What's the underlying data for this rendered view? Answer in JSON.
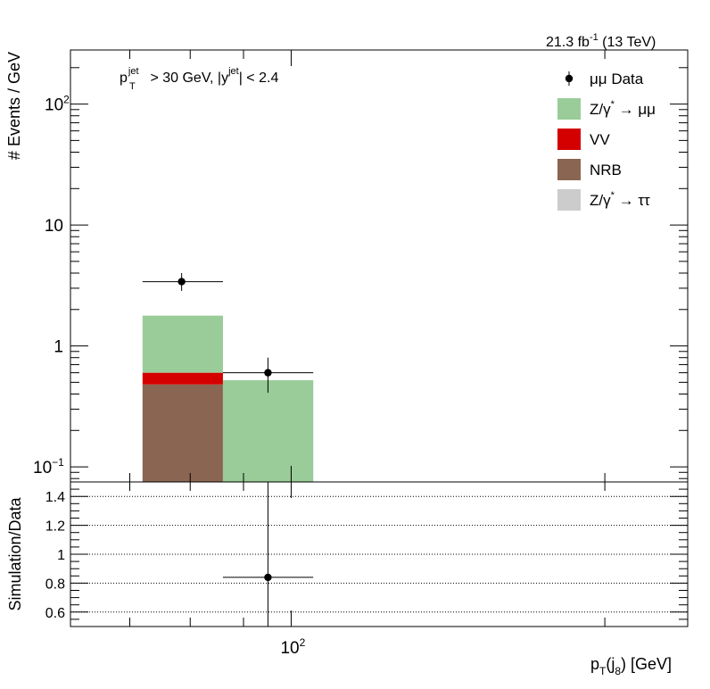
{
  "lumi_label": "21.3 fb",
  "lumi_exp": "-1",
  "lumi_energy": " (13 TeV)",
  "cut_label": {
    "p1": "p",
    "p1_sup": "jet",
    "p1_sub": "T",
    "p2": " > 30 GeV,  |y",
    "p2_sup": "jet",
    "p3": "| < 2.4"
  },
  "chart_data": [
    {
      "type": "bar",
      "stacked": true,
      "xscale": "log",
      "yscale": "log",
      "xlim": [
        61.4,
        240.2
      ],
      "ylim": [
        0.075,
        280
      ],
      "ylabel": "# Events / GeV",
      "yticks": [
        {
          "value": 0.1,
          "label": "10",
          "exp": "−1"
        },
        {
          "value": 1,
          "label": "1",
          "exp": ""
        },
        {
          "value": 10,
          "label": "10",
          "exp": ""
        },
        {
          "value": 100,
          "label": "10",
          "exp": "2"
        }
      ],
      "legend_position": "top-right",
      "bins": [
        [
          72,
          86
        ],
        [
          86,
          105
        ]
      ],
      "series": [
        {
          "name": "NRB",
          "color": "#8a6552",
          "values": [
            0.48,
            0
          ]
        },
        {
          "name": "VV",
          "color": "#d40000",
          "values": [
            0.12,
            0
          ]
        },
        {
          "name": "Z/γ* → μμ",
          "color": "#99cc99",
          "values": [
            1.18,
            0.52
          ]
        },
        {
          "name": "Z/γ* → ττ",
          "color": "#cccccc",
          "values": [
            0,
            0
          ]
        }
      ],
      "data": {
        "name": "μμ Data",
        "points": [
          {
            "x": 78.5,
            "xlo": 72,
            "xhi": 86,
            "y": 3.4,
            "ylo": 2.85,
            "yhi": 4.0
          },
          {
            "x": 95,
            "xlo": 86,
            "xhi": 105,
            "y": 0.6,
            "ylo": 0.41,
            "yhi": 0.8
          }
        ]
      },
      "legend": [
        {
          "label": "μμ Data",
          "kind": "marker"
        },
        {
          "label": "Z/γ",
          "sup": "*",
          "after": " → μμ",
          "kind": "box",
          "color": "#99cc99"
        },
        {
          "label": "VV",
          "kind": "box",
          "color": "#d40000"
        },
        {
          "label": "NRB",
          "kind": "box",
          "color": "#8a6552"
        },
        {
          "label": "Z/γ",
          "sup": "*",
          "after": " → ττ",
          "kind": "box",
          "color": "#cccccc"
        }
      ]
    },
    {
      "type": "scatter",
      "xscale": "log",
      "ylim": [
        0.5,
        1.5
      ],
      "ylabel": "Simulation/Data",
      "yticks": [
        {
          "value": 0.6,
          "label": "0.6"
        },
        {
          "value": 0.8,
          "label": "0.8"
        },
        {
          "value": 1,
          "label": "1"
        },
        {
          "value": 1.2,
          "label": "1.2"
        },
        {
          "value": 1.4,
          "label": "1.4"
        }
      ],
      "gridlines": [
        0.6,
        0.8,
        1.0,
        1.2,
        1.4
      ],
      "points": [
        {
          "x": 95,
          "xlo": 86,
          "xhi": 105,
          "y": 0.84,
          "ylo": 0.3,
          "yhi": 1.5
        }
      ],
      "xlabel": "p",
      "xlabel_sub": "T",
      "xlabel_mid": "(j",
      "xlabel_sub2": "8",
      "xlabel_end": ") [GeV]",
      "xticks": [
        {
          "value": 100,
          "label": "10",
          "exp": "2"
        }
      ]
    }
  ]
}
